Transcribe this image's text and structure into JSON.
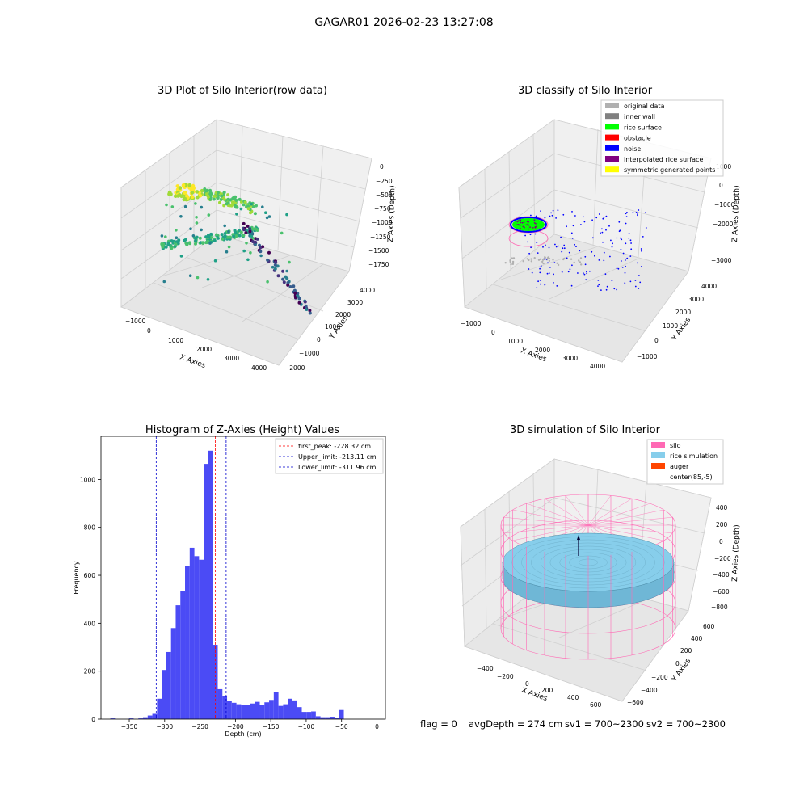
{
  "figure": {
    "suptitle": "GAGAR01 2026-02-23 13:27:08"
  },
  "status": {
    "flag": "flag = 0",
    "avg_depth": "avgDepth = 274 cm",
    "sv1": "sv1 = 700~2300",
    "sv2": "sv2 = 700~2300"
  },
  "colors": {
    "hist": "#4b4bf5",
    "first_peak": "#ff0000",
    "limits": "#0000cc",
    "silo": "#ff69b4",
    "rice": "#87ceeb",
    "auger": "#ff4500",
    "rice_surface": "#00ff00",
    "obstacle": "#ff0000",
    "noise": "#0000ff",
    "inner_wall": "#808080",
    "original": "#b0b0b0",
    "interp": "#800080",
    "symmetric": "#ffff00"
  },
  "chart_data": [
    {
      "type": "scatter",
      "title": "3D Plot of Silo Interior(row data)",
      "xlabel": "X Axies",
      "ylabel": "Y Axies",
      "zlabel": "Z Axies (Depth)",
      "x_ticks": [
        "−1000",
        "0",
        "1000",
        "2000",
        "3000",
        "4000"
      ],
      "y_ticks": [
        "−2000",
        "−1000",
        "0",
        "1000",
        "2000",
        "3000",
        "4000"
      ],
      "z_ticks": [
        "0",
        "−250",
        "−500",
        "−750",
        "−1000",
        "−1250",
        "−1500",
        "−1750"
      ],
      "xlim": [
        -1000,
        4300
      ],
      "ylim": [
        -2000,
        4500
      ],
      "zlim": [
        -1900,
        100
      ],
      "colormap": "viridis"
    },
    {
      "type": "scatter",
      "title": "3D classify of Silo Interior",
      "xlabel": "X Axies",
      "ylabel": "Y Axies",
      "zlabel": "Z Axies (Depth)",
      "x_ticks": [
        "−1000",
        "0",
        "1000",
        "2000",
        "3000",
        "4000"
      ],
      "y_ticks": [
        "−1000",
        "0",
        "1000",
        "2000",
        "3000",
        "4000"
      ],
      "z_ticks": [
        "1000",
        "0",
        "−1000",
        "−2000",
        "−3000"
      ],
      "xlim": [
        -1000,
        4300
      ],
      "ylim": [
        -1500,
        4000
      ],
      "zlim": [
        -3500,
        1500
      ],
      "legend": {
        "placement": "top-right",
        "entries": [
          {
            "label": "original data",
            "color": "#b0b0b0"
          },
          {
            "label": "inner wall",
            "color": "#808080"
          },
          {
            "label": "rice surface",
            "color": "#00ff00"
          },
          {
            "label": "obstacle",
            "color": "#ff0000"
          },
          {
            "label": "noise",
            "color": "#0000ff"
          },
          {
            "label": "interpolated rice surface",
            "color": "#800080"
          },
          {
            "label": "symmetric generated points",
            "color": "#ffff00"
          }
        ]
      }
    },
    {
      "type": "bar",
      "title": "Histogram of Z-Axies (Height) Values",
      "xlabel": "Depth (cm)",
      "ylabel": "Frequency",
      "xlim": [
        -390,
        12
      ],
      "ylim": [
        0,
        1180
      ],
      "x_ticks": [
        -350,
        -300,
        -250,
        -200,
        -150,
        -100,
        -50,
        0
      ],
      "x_tick_labels": [
        "−350",
        "−300",
        "−250",
        "−200",
        "−150",
        "−100",
        "−50",
        "0"
      ],
      "y_ticks": [
        0,
        200,
        400,
        600,
        800,
        1000
      ],
      "y_tick_labels": [
        "0",
        "200",
        "400",
        "600",
        "800",
        "1000"
      ],
      "bin_start": -390,
      "bin_width": 6.6,
      "values": [
        0,
        0,
        3,
        0,
        0,
        0,
        3,
        0,
        3,
        8,
        15,
        22,
        85,
        205,
        280,
        380,
        475,
        535,
        640,
        715,
        680,
        665,
        1065,
        1120,
        310,
        125,
        95,
        75,
        68,
        62,
        58,
        58,
        65,
        72,
        60,
        70,
        80,
        112,
        55,
        62,
        85,
        78,
        50,
        30,
        30,
        32,
        12,
        8,
        8,
        10,
        5,
        38
      ],
      "lines": [
        {
          "x": -228.32,
          "label": "first_peak: -228.32 cm",
          "color": "#ff0000",
          "style": "dashed"
        },
        {
          "x": -213.11,
          "label": "Upper_limit: -213.11 cm",
          "color": "#0000cc",
          "style": "dashed"
        },
        {
          "x": -311.96,
          "label": "Lower_limit: -311.96 cm",
          "color": "#0000cc",
          "style": "dashed"
        }
      ],
      "legend": {
        "placement": "top-right"
      }
    },
    {
      "type": "scatter",
      "title": "3D simulation of Silo Interior",
      "xlabel": "X Axies",
      "ylabel": "Y Axies",
      "zlabel": "Z Axies (Depth)",
      "x_ticks": [
        "−400",
        "−200",
        "0",
        "200",
        "400",
        "600"
      ],
      "y_ticks": [
        "−600",
        "−400",
        "−200",
        "0",
        "200",
        "400",
        "600"
      ],
      "z_ticks": [
        "400",
        "200",
        "0",
        "−200",
        "−400",
        "−600",
        "−800"
      ],
      "legend": {
        "placement": "top-right",
        "entries": [
          {
            "label": "silo",
            "color": "#ff69b4"
          },
          {
            "label": "rice simulation",
            "color": "#87ceeb"
          },
          {
            "label": "auger",
            "color": "#ff4500"
          },
          {
            "label": "center(85,-5)",
            "color": ""
          }
        ]
      }
    }
  ]
}
